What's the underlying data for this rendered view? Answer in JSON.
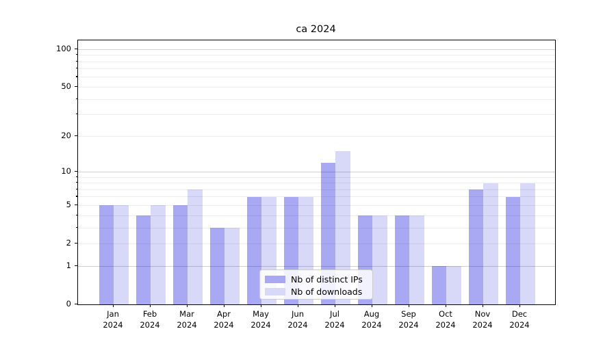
{
  "figure": {
    "background": "#ffffff"
  },
  "chart_data": {
    "type": "bar",
    "title": "ca 2024",
    "categories": [
      "Jan",
      "Feb",
      "Mar",
      "Apr",
      "May",
      "Jun",
      "Jul",
      "Aug",
      "Sep",
      "Oct",
      "Nov",
      "Dec"
    ],
    "year_label": "2024",
    "series": [
      {
        "name": "Nb of distinct IPs",
        "color": "#a9a9f3",
        "values": [
          5,
          4,
          5,
          3,
          6,
          6,
          12,
          4,
          4,
          1,
          7,
          6
        ]
      },
      {
        "name": "Nb of downloads",
        "color": "#d8d8f8",
        "values": [
          5,
          5,
          7,
          3,
          6,
          6,
          15,
          4,
          4,
          1,
          8,
          8
        ]
      }
    ],
    "xlabel": "",
    "ylabel": "",
    "yscale": "log1p",
    "ylim": [
      0,
      118
    ],
    "yticks": [
      0,
      1,
      2,
      5,
      10,
      20,
      50,
      100
    ],
    "major_gridlines": [
      1,
      10,
      100
    ],
    "minor_gridlines": [
      2,
      3,
      4,
      5,
      6,
      7,
      8,
      9,
      20,
      30,
      40,
      50,
      60,
      70,
      80,
      90
    ],
    "grid": "on",
    "legend_position": "lower center",
    "axis_color": "#000000",
    "major_grid_color": "#d1d1d1",
    "minor_grid_color": "#ececec"
  }
}
